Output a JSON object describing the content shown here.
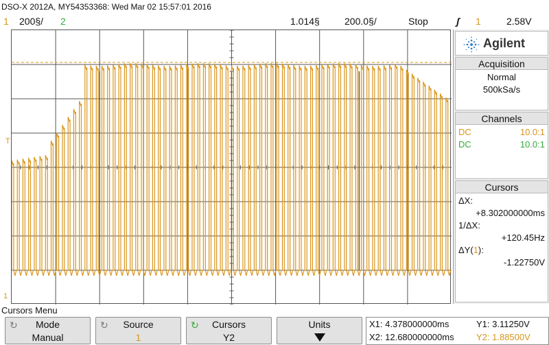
{
  "header": {
    "model_line": "DSO-X 2012A, MY54353368: Wed Mar 02 15:57:01 2016",
    "ch1_number": "1",
    "ch1_scale": "200§/",
    "ch2_number": "2",
    "timebase": "1.014§",
    "delay": "200.0§/",
    "run_state": "Stop",
    "trigger_symbol": "ʃ",
    "trigger_channel": "1",
    "trigger_level": "2.58V"
  },
  "colors": {
    "ch1": "#d9951a",
    "ch2": "#36a83b",
    "grid": "#555555"
  },
  "markers": {
    "trigger_marker": "T",
    "ground_marker": "1"
  },
  "waveform": {
    "channel": "1",
    "pulse_count": 78,
    "shape": "rising envelope with periodic low pulses"
  },
  "panel": {
    "brand": "Agilent",
    "brand_icon": "starburst-logo-icon",
    "acquisition": {
      "title": "Acquisition",
      "mode": "Normal",
      "rate": "500kSa/s"
    },
    "channels": {
      "title": "Channels",
      "rows": [
        {
          "coupling": "DC",
          "probe": "10.0:1"
        },
        {
          "coupling": "DC",
          "probe": "10.0:1"
        }
      ]
    },
    "cursors": {
      "title": "Cursors",
      "dx_label": "ΔX:",
      "dx_value": "+8.302000000ms",
      "inv_dx_label": "1/ΔX:",
      "inv_dx_value": "+120.45Hz",
      "dy_label_pre": "ΔY(",
      "dy_label_ch": "1",
      "dy_label_post": "):",
      "dy_value": "-1.22750V"
    }
  },
  "menu": {
    "title": "Cursors Menu",
    "softkeys": [
      {
        "label": "Mode",
        "value": "Manual"
      },
      {
        "label": "Source",
        "value": "1"
      },
      {
        "label": "Cursors",
        "value": "Y2"
      },
      {
        "label": "Units",
        "value": ""
      }
    ],
    "readout": {
      "x1": "X1: 4.378000000ms",
      "x2": "X2: 12.680000000ms",
      "y1": "Y1: 3.11250V",
      "y2": "Y2: 1.88500V"
    }
  }
}
